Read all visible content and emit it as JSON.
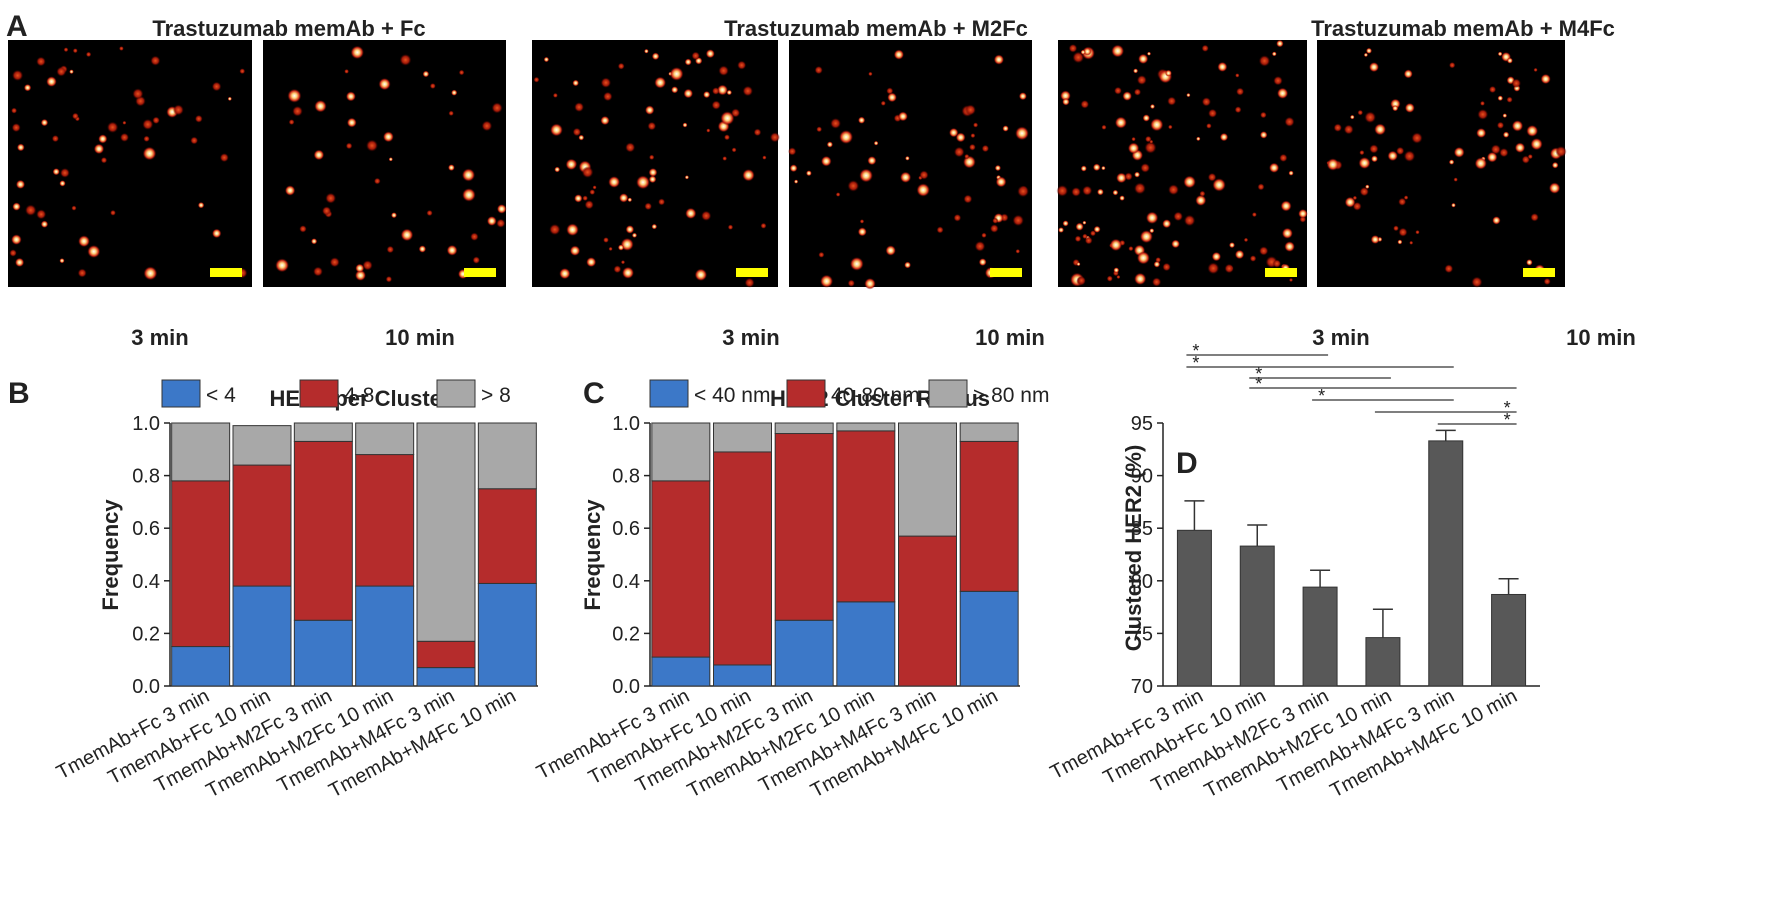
{
  "panel_letters": [
    "A",
    "B",
    "C",
    "D"
  ],
  "panel_a": {
    "groups": [
      {
        "title": "Trastuzumab memAb + Fc",
        "captions": [
          "3 min",
          "10 min"
        ]
      },
      {
        "title": "Trastuzumab memAb + M2Fc",
        "captions": [
          "3 min",
          "10 min"
        ]
      },
      {
        "title": "Trastuzumab memAb + M4Fc",
        "captions": [
          "3 min",
          "10 min"
        ]
      }
    ],
    "scale_bar_color": "#ffff00",
    "image_background": "#000000"
  },
  "colors": {
    "blue": "#3c78c8",
    "red": "#b52c2c",
    "gray": "#a8a8a8",
    "dark_bar": "#585858",
    "axis": "#222222"
  },
  "chart_data": [
    {
      "id": "B",
      "type": "bar",
      "stacked": true,
      "title": "HER2 per Cluster",
      "xlabel": "",
      "ylabel": "Frequency",
      "ylim": [
        0,
        1.0
      ],
      "yticks": [
        "0.0",
        "0.2",
        "0.4",
        "0.6",
        "0.8",
        "1.0"
      ],
      "categories": [
        "TmemAb+Fc 3 min",
        "TmemAb+Fc 10 min",
        "TmemAb+M2Fc 3 min",
        "TmemAb+M2Fc 10 min",
        "TmemAb+M4Fc 3 min",
        "TmemAb+M4Fc 10 min"
      ],
      "series": [
        {
          "name": "< 4",
          "values": [
            0.15,
            0.38,
            0.25,
            0.38,
            0.07,
            0.39
          ]
        },
        {
          "name": "4-8",
          "values": [
            0.63,
            0.46,
            0.68,
            0.5,
            0.1,
            0.36
          ]
        },
        {
          "name": "> 8",
          "values": [
            0.22,
            0.15,
            0.07,
            0.12,
            0.83,
            0.25
          ]
        }
      ],
      "legend_position": "top"
    },
    {
      "id": "C",
      "type": "bar",
      "stacked": true,
      "title": "HER2 Cluster Radius",
      "xlabel": "",
      "ylabel": "Frequency",
      "ylim": [
        0,
        1.0
      ],
      "yticks": [
        "0.0",
        "0.2",
        "0.4",
        "0.6",
        "0.8",
        "1.0"
      ],
      "categories": [
        "TmemAb+Fc 3 min",
        "TmemAb+Fc 10 min",
        "TmemAb+M2Fc 3 min",
        "TmemAb+M2Fc 10 min",
        "TmemAb+M4Fc 3 min",
        "TmemAb+M4Fc 10 min"
      ],
      "series": [
        {
          "name": "< 40 nm",
          "values": [
            0.11,
            0.08,
            0.25,
            0.32,
            0.0,
            0.36
          ]
        },
        {
          "name": "40-80 nm",
          "values": [
            0.67,
            0.81,
            0.71,
            0.65,
            0.57,
            0.57
          ]
        },
        {
          "name": "> 80 nm",
          "values": [
            0.22,
            0.11,
            0.04,
            0.03,
            0.43,
            0.07
          ]
        }
      ],
      "legend_position": "top"
    },
    {
      "id": "D",
      "type": "bar",
      "title": "",
      "xlabel": "",
      "ylabel": "Clustered HER2 (%)",
      "ylim": [
        70,
        95
      ],
      "yticks": [
        "70",
        "75",
        "80",
        "85",
        "90",
        "95"
      ],
      "categories": [
        "TmemAb+Fc 3 min",
        "TmemAb+Fc 10 min",
        "TmemAb+M2Fc 3 min",
        "TmemAb+M2Fc 10 min",
        "TmemAb+M4Fc 3 min",
        "TmemAb+M4Fc 10 min"
      ],
      "values": [
        84.8,
        83.3,
        79.4,
        74.6,
        93.3,
        78.7
      ],
      "errors": [
        2.8,
        2.0,
        1.6,
        2.7,
        1.0,
        1.5
      ],
      "significance": [
        {
          "from": 0,
          "to": 2,
          "label": "*"
        },
        {
          "from": 0,
          "to": 4,
          "label": "*"
        },
        {
          "from": 1,
          "to": 3,
          "label": "*"
        },
        {
          "from": 1,
          "to": 5,
          "label": "*"
        },
        {
          "from": 2,
          "to": 4,
          "label": "*"
        },
        {
          "from": 3,
          "to": 5,
          "label": "*"
        },
        {
          "from": 4,
          "to": 5,
          "label": "*"
        }
      ]
    }
  ]
}
